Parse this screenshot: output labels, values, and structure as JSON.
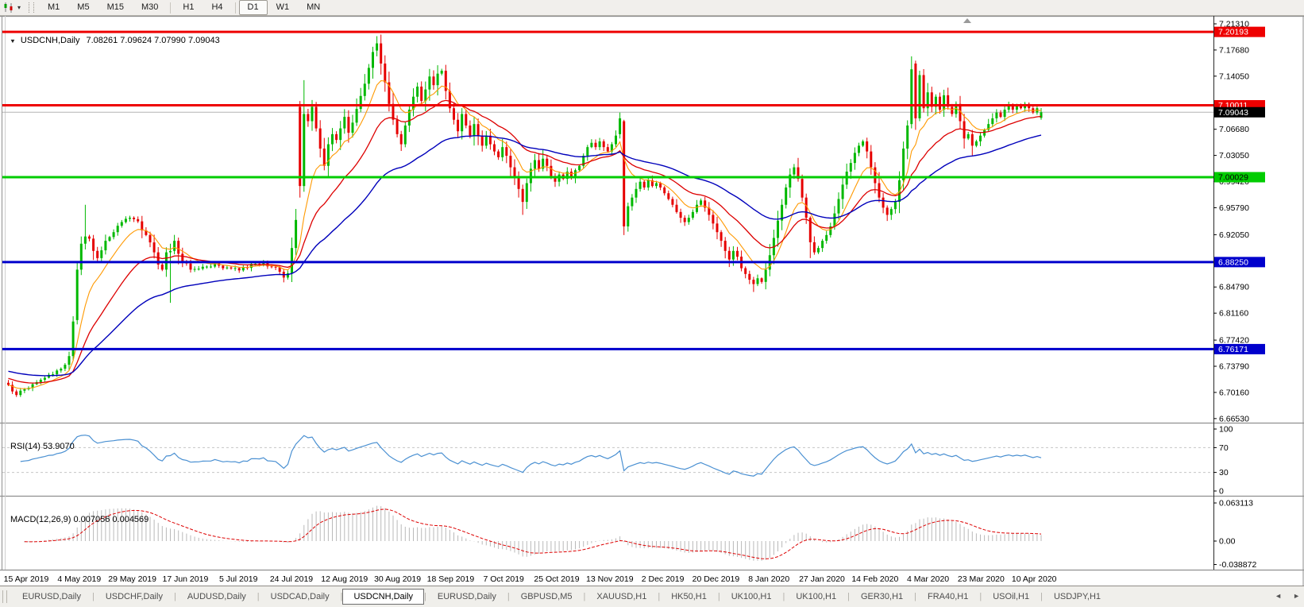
{
  "toolbar": {
    "chart_type_icon": "candlestick-chart-icon",
    "dropdown_caret": "▾",
    "timeframes": [
      "M1",
      "M5",
      "M15",
      "M30",
      "H1",
      "H4",
      "D1",
      "W1",
      "MN"
    ],
    "active_timeframe": "D1",
    "separators_after": [
      "M30",
      "H4"
    ]
  },
  "chart": {
    "symbol_dropdown_icon": "▼",
    "symbol_title": "USDCNH,Daily",
    "ohlc_text": "7.08261 7.09624 7.07990 7.09043",
    "rsi_label": "RSI(14) 53.9070",
    "macd_label": "MACD(12,26,9) 0.007056 0.004569"
  },
  "chart_data": {
    "type": "candlestick",
    "symbol": "USDCNH",
    "timeframe": "Daily",
    "last_candle": {
      "open": 7.08261,
      "high": 7.09624,
      "low": 7.0799,
      "close": 7.09043
    },
    "up_color": "#00b800",
    "down_color": "#e60000",
    "price_axis_ticks": [
      "7.21310",
      "7.17680",
      "7.14050",
      "7.06680",
      "7.03050",
      "6.99420",
      "6.95790",
      "6.92050",
      "6.84790",
      "6.81160",
      "6.77420",
      "6.73790",
      "6.70160",
      "6.66530"
    ],
    "date_axis_labels": [
      "15 Apr 2019",
      "4 May 2019",
      "29 May 2019",
      "17 Jun 2019",
      "5 Jul 2019",
      "24 Jul 2019",
      "12 Aug 2019",
      "30 Aug 2019",
      "18 Sep 2019",
      "7 Oct 2019",
      "25 Oct 2019",
      "13 Nov 2019",
      "2 Dec 2019",
      "20 Dec 2019",
      "8 Jan 2020",
      "27 Jan 2020",
      "14 Feb 2020",
      "4 Mar 2020",
      "23 Mar 2020",
      "10 Apr 2020"
    ],
    "levels": [
      {
        "price": 7.20193,
        "label": "7.20193",
        "color": "#ee0000",
        "label_bg": "#ee0000",
        "label_fg": "#ffffff",
        "width": 3,
        "role": "resistance"
      },
      {
        "price": 7.10011,
        "label": "7.10011",
        "color": "#ee0000",
        "label_bg": "#ee0000",
        "label_fg": "#ffffff",
        "width": 3,
        "role": "resistance"
      },
      {
        "price": 7.09043,
        "label": "7.09043",
        "color": "#b4b4b4",
        "label_bg": "#000000",
        "label_fg": "#ffffff",
        "width": 1,
        "role": "current-price"
      },
      {
        "price": 7.00029,
        "label": "7.00029",
        "color": "#00cc00",
        "label_bg": "#00cc00",
        "label_fg": "#000000",
        "width": 3,
        "role": "support"
      },
      {
        "price": 6.8825,
        "label": "6.88250",
        "color": "#0000cc",
        "label_bg": "#0000cc",
        "label_fg": "#ffffff",
        "width": 3,
        "role": "support"
      },
      {
        "price": 6.76171,
        "label": "6.76171",
        "color": "#0000cc",
        "label_bg": "#0000cc",
        "label_fg": "#ffffff",
        "width": 3,
        "role": "support"
      }
    ],
    "moving_averages": [
      {
        "period": 9,
        "color": "#ff9900",
        "name": "fast-ma"
      },
      {
        "period": 22,
        "color": "#dd0000",
        "name": "mid-ma"
      },
      {
        "period": 50,
        "color": "#0000bb",
        "name": "slow-ma"
      }
    ],
    "candles": {
      "count": 256,
      "open0": 6.715,
      "anchors": [
        [
          0,
          6.712
        ],
        [
          1,
          6.703
        ],
        [
          2,
          6.698
        ],
        [
          4,
          6.706
        ],
        [
          6,
          6.713
        ],
        [
          9,
          6.722
        ],
        [
          12,
          6.732
        ],
        [
          14,
          6.74
        ],
        [
          15,
          6.752
        ],
        [
          16,
          6.8
        ],
        [
          17,
          6.872
        ],
        [
          18,
          6.908
        ],
        [
          19,
          6.918
        ],
        [
          20,
          6.915
        ],
        [
          21,
          6.898
        ],
        [
          22,
          6.888
        ],
        [
          24,
          6.912
        ],
        [
          26,
          6.924
        ],
        [
          28,
          6.938
        ],
        [
          30,
          6.944
        ],
        [
          32,
          6.939
        ],
        [
          34,
          6.92
        ],
        [
          36,
          6.896
        ],
        [
          37,
          6.879
        ],
        [
          38,
          6.872
        ],
        [
          39,
          6.896
        ],
        [
          40,
          6.898
        ],
        [
          41,
          6.912
        ],
        [
          42,
          6.894
        ],
        [
          43,
          6.884
        ],
        [
          45,
          6.872
        ],
        [
          48,
          6.876
        ],
        [
          51,
          6.881
        ],
        [
          54,
          6.875
        ],
        [
          57,
          6.871
        ],
        [
          60,
          6.88
        ],
        [
          63,
          6.882
        ],
        [
          65,
          6.876
        ],
        [
          67,
          6.869
        ],
        [
          68,
          6.861
        ],
        [
          69,
          6.867
        ],
        [
          70,
          6.902
        ],
        [
          71,
          6.941
        ],
        [
          72,
          6.988
        ],
        [
          73,
          7.088
        ],
        [
          74,
          7.078
        ],
        [
          75,
          7.098
        ],
        [
          76,
          7.068
        ],
        [
          77,
          7.04
        ],
        [
          78,
          7.016
        ],
        [
          79,
          7.046
        ],
        [
          80,
          7.06
        ],
        [
          81,
          7.052
        ],
        [
          82,
          7.068
        ],
        [
          83,
          7.084
        ],
        [
          84,
          7.062
        ],
        [
          85,
          7.076
        ],
        [
          86,
          7.095
        ],
        [
          87,
          7.113
        ],
        [
          88,
          7.13
        ],
        [
          89,
          7.152
        ],
        [
          90,
          7.174
        ],
        [
          91,
          7.186
        ],
        [
          92,
          7.158
        ],
        [
          93,
          7.132
        ],
        [
          94,
          7.102
        ],
        [
          95,
          7.08
        ],
        [
          96,
          7.06
        ],
        [
          97,
          7.046
        ],
        [
          98,
          7.072
        ],
        [
          99,
          7.094
        ],
        [
          100,
          7.112
        ],
        [
          101,
          7.126
        ],
        [
          102,
          7.106
        ],
        [
          103,
          7.122
        ],
        [
          104,
          7.14
        ],
        [
          105,
          7.128
        ],
        [
          106,
          7.144
        ],
        [
          107,
          7.148
        ],
        [
          108,
          7.12
        ],
        [
          109,
          7.096
        ],
        [
          110,
          7.08
        ],
        [
          111,
          7.064
        ],
        [
          112,
          7.088
        ],
        [
          113,
          7.072
        ],
        [
          114,
          7.058
        ],
        [
          115,
          7.074
        ],
        [
          116,
          7.058
        ],
        [
          117,
          7.044
        ],
        [
          118,
          7.058
        ],
        [
          119,
          7.046
        ],
        [
          120,
          7.036
        ],
        [
          121,
          7.028
        ],
        [
          122,
          7.042
        ],
        [
          123,
          7.03
        ],
        [
          124,
          7.014
        ],
        [
          125,
          7.0
        ],
        [
          126,
          6.984
        ],
        [
          127,
          6.966
        ],
        [
          128,
          6.992
        ],
        [
          129,
          7.012
        ],
        [
          130,
          7.024
        ],
        [
          131,
          7.012
        ],
        [
          132,
          7.026
        ],
        [
          133,
          7.016
        ],
        [
          134,
          7.002
        ],
        [
          135,
          6.994
        ],
        [
          136,
          7.004
        ],
        [
          137,
          6.998
        ],
        [
          138,
          7.008
        ],
        [
          139,
          7.0
        ],
        [
          140,
          7.01
        ],
        [
          141,
          7.016
        ],
        [
          142,
          7.03
        ],
        [
          143,
          7.042
        ],
        [
          144,
          7.048
        ],
        [
          145,
          7.042
        ],
        [
          146,
          7.05
        ],
        [
          147,
          7.042
        ],
        [
          148,
          7.036
        ],
        [
          149,
          7.046
        ],
        [
          150,
          7.058
        ],
        [
          151,
          7.082
        ],
        [
          152,
          6.932
        ],
        [
          153,
          6.96
        ],
        [
          154,
          6.972
        ],
        [
          155,
          6.984
        ],
        [
          156,
          6.994
        ],
        [
          157,
          6.986
        ],
        [
          158,
          6.996
        ],
        [
          159,
          6.988
        ],
        [
          160,
          6.992
        ],
        [
          161,
          6.986
        ],
        [
          162,
          6.978
        ],
        [
          163,
          6.97
        ],
        [
          164,
          6.962
        ],
        [
          165,
          6.952
        ],
        [
          166,
          6.944
        ],
        [
          167,
          6.938
        ],
        [
          168,
          6.944
        ],
        [
          169,
          6.952
        ],
        [
          170,
          6.962
        ],
        [
          171,
          6.968
        ],
        [
          172,
          6.958
        ],
        [
          173,
          6.948
        ],
        [
          174,
          6.936
        ],
        [
          175,
          6.924
        ],
        [
          176,
          6.912
        ],
        [
          177,
          6.898
        ],
        [
          178,
          6.886
        ],
        [
          179,
          6.898
        ],
        [
          180,
          6.89
        ],
        [
          181,
          6.874
        ],
        [
          182,
          6.866
        ],
        [
          183,
          6.858
        ],
        [
          184,
          6.852
        ],
        [
          185,
          6.86
        ],
        [
          186,
          6.855
        ],
        [
          187,
          6.872
        ],
        [
          188,
          6.892
        ],
        [
          189,
          6.916
        ],
        [
          190,
          6.94
        ],
        [
          191,
          6.962
        ],
        [
          192,
          6.986
        ],
        [
          193,
          7.004
        ],
        [
          194,
          7.014
        ],
        [
          195,
          6.998
        ],
        [
          196,
          6.972
        ],
        [
          197,
          6.944
        ],
        [
          198,
          6.91
        ],
        [
          199,
          6.896
        ],
        [
          200,
          6.902
        ],
        [
          201,
          6.912
        ],
        [
          202,
          6.92
        ],
        [
          203,
          6.932
        ],
        [
          204,
          6.95
        ],
        [
          205,
          6.97
        ],
        [
          206,
          6.99
        ],
        [
          207,
          7.008
        ],
        [
          208,
          7.02
        ],
        [
          209,
          7.034
        ],
        [
          210,
          7.044
        ],
        [
          211,
          7.05
        ],
        [
          212,
          7.036
        ],
        [
          213,
          7.014
        ],
        [
          214,
          6.992
        ],
        [
          215,
          6.972
        ],
        [
          216,
          6.958
        ],
        [
          217,
          6.948
        ],
        [
          218,
          6.956
        ],
        [
          219,
          6.966
        ],
        [
          220,
          6.996
        ],
        [
          221,
          7.04
        ],
        [
          222,
          7.072
        ],
        [
          223,
          7.15
        ],
        [
          224,
          7.082
        ],
        [
          225,
          7.142
        ],
        [
          226,
          7.096
        ],
        [
          227,
          7.118
        ],
        [
          228,
          7.098
        ],
        [
          229,
          7.112
        ],
        [
          230,
          7.094
        ],
        [
          231,
          7.114
        ],
        [
          232,
          7.098
        ],
        [
          233,
          7.088
        ],
        [
          234,
          7.102
        ],
        [
          235,
          7.078
        ],
        [
          236,
          7.054
        ],
        [
          237,
          7.06
        ],
        [
          238,
          7.044
        ],
        [
          239,
          7.05
        ],
        [
          240,
          7.058
        ],
        [
          241,
          7.066
        ],
        [
          242,
          7.074
        ],
        [
          243,
          7.082
        ],
        [
          244,
          7.09
        ],
        [
          245,
          7.084
        ],
        [
          246,
          7.094
        ],
        [
          247,
          7.1
        ],
        [
          248,
          7.094
        ],
        [
          249,
          7.1
        ],
        [
          250,
          7.096
        ],
        [
          251,
          7.102
        ],
        [
          252,
          7.096
        ],
        [
          253,
          7.09
        ],
        [
          254,
          7.096
        ],
        [
          255,
          7.09043
        ]
      ],
      "overrides": {
        "17": [
          6.802,
          6.884,
          6.796,
          6.872
        ],
        "19": [
          6.908,
          6.962,
          6.9,
          6.918
        ],
        "40": [
          6.896,
          6.908,
          6.826,
          6.898
        ],
        "72": [
          7.098,
          7.106,
          6.972,
          6.988
        ],
        "73": [
          6.988,
          7.135,
          6.98,
          7.088
        ],
        "91": [
          7.176,
          7.196,
          7.168,
          7.186
        ],
        "127": [
          6.984,
          6.99,
          6.948,
          6.966
        ],
        "151": [
          7.06,
          7.09,
          7.054,
          7.082
        ],
        "152": [
          7.078,
          7.08,
          6.92,
          6.932
        ],
        "184": [
          6.858,
          6.862,
          6.841,
          6.852
        ],
        "198": [
          6.944,
          6.946,
          6.888,
          6.91
        ],
        "223": [
          7.074,
          7.168,
          7.068,
          7.15
        ],
        "224": [
          7.158,
          7.162,
          7.066,
          7.082
        ],
        "225": [
          7.082,
          7.148,
          7.078,
          7.142
        ],
        "255": [
          7.08261,
          7.09624,
          7.0799,
          7.09043
        ]
      }
    },
    "rsi": {
      "period": 14,
      "value": 53.907,
      "color": "#4a90d2",
      "dashed_levels": [
        70,
        30
      ],
      "axis_ticks": [
        "100",
        "70",
        "30",
        "0"
      ],
      "level_color": "#c6c6c6"
    },
    "macd": {
      "fast": 12,
      "slow": 26,
      "signal_period": 9,
      "macd_value": 0.007056,
      "signal_value": 0.004569,
      "hist_color": "#b9b9b9",
      "signal_color": "#dd0000",
      "axis_ticks": [
        "0.063113",
        "0.00",
        "-0.038872"
      ]
    },
    "shift_marker_color": "#9a9a9a"
  },
  "tabs": {
    "items": [
      "EURUSD,Daily",
      "USDCHF,Daily",
      "AUDUSD,Daily",
      "USDCAD,Daily",
      "USDCNH,Daily",
      "EURUSD,Daily",
      "GBPUSD,M5",
      "XAUUSD,H1",
      "HK50,H1",
      "UK100,H1",
      "UK100,H1",
      "GER30,H1",
      "FRA40,H1",
      "USOil,H1",
      "USDJPY,H1"
    ],
    "active_index": 4,
    "scroll_left_icon": "◄",
    "scroll_right_icon": "►"
  }
}
